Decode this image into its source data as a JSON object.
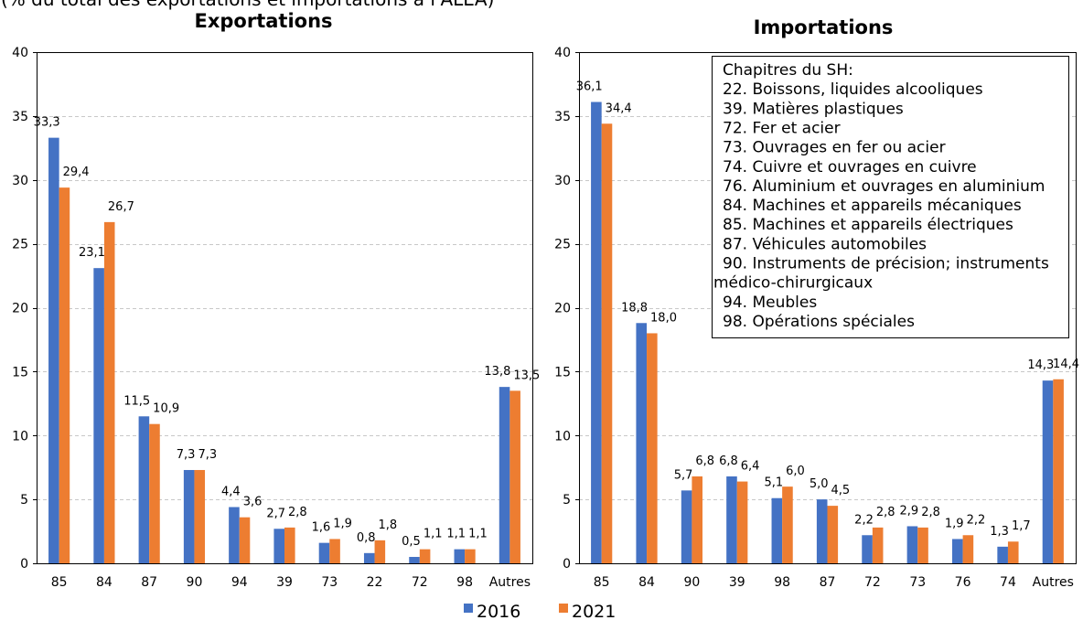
{
  "subtitle": "(% du total des exportations et importations à l'ALEA)",
  "legend": {
    "position": "bottom",
    "items": [
      {
        "label": "2016",
        "color": "#4472C4"
      },
      {
        "label": "2021",
        "color": "#ED7D31"
      }
    ]
  },
  "hs_chapters": {
    "placement": "top-right of Importations chart",
    "title": "Chapitres du SH:",
    "lines": [
      "22. Boissons, liquides alcooliques",
      "39. Matières plastiques",
      "72. Fer et acier",
      "73. Ouvrages en fer ou acier",
      "74. Cuivre et ouvrages en cuivre",
      "76. Aluminium et ouvrages en aluminium",
      "84. Machines et appareils mécaniques",
      "85. Machines et appareils électriques",
      "87. Véhicules automobiles",
      "90. Instruments de précision; instruments",
      "médico-chirurgicaux",
      "94. Meubles",
      "98. Opérations spéciales"
    ]
  },
  "chart_data": [
    {
      "type": "bar",
      "title": "Exportations",
      "categories": [
        "85",
        "84",
        "87",
        "90",
        "94",
        "39",
        "73",
        "22",
        "72",
        "98",
        "Autres"
      ],
      "series": [
        {
          "name": "2016",
          "color": "#4472C4",
          "values": [
            33.3,
            23.1,
            11.5,
            7.3,
            4.4,
            2.7,
            1.6,
            0.8,
            0.5,
            1.1,
            13.8
          ],
          "labels": [
            "33,3",
            "23,1",
            "11,5",
            "7,3",
            "4,4",
            "2,7",
            "1,6",
            "0,8",
            "0,5",
            "1,1",
            "13,8"
          ]
        },
        {
          "name": "2021",
          "color": "#ED7D31",
          "values": [
            29.4,
            26.7,
            10.9,
            7.3,
            3.6,
            2.8,
            1.9,
            1.8,
            1.1,
            1.1,
            13.5
          ],
          "labels": [
            "29,4",
            "26,7",
            "10,9",
            "7,3",
            "3,6",
            "2,8",
            "1,9",
            "1,8",
            "1,1",
            "1,1",
            "13,5"
          ]
        }
      ],
      "ylim": [
        0,
        40
      ],
      "yticks": [
        0,
        5,
        10,
        15,
        20,
        25,
        30,
        35,
        40
      ],
      "grid": true
    },
    {
      "type": "bar",
      "title": "Importations",
      "categories": [
        "85",
        "84",
        "90",
        "39",
        "98",
        "87",
        "72",
        "73",
        "76",
        "74",
        "Autres"
      ],
      "series": [
        {
          "name": "2016",
          "color": "#4472C4",
          "values": [
            36.1,
            18.8,
            5.7,
            6.8,
            5.1,
            5.0,
            2.2,
            2.9,
            1.9,
            1.3,
            14.3
          ],
          "labels": [
            "36,1",
            "18,8",
            "5,7",
            "6,8",
            "5,1",
            "5,0",
            "2,2",
            "2,9",
            "1,9",
            "1,3",
            "14,3"
          ]
        },
        {
          "name": "2021",
          "color": "#ED7D31",
          "values": [
            34.4,
            18.0,
            6.8,
            6.4,
            6.0,
            4.5,
            2.8,
            2.8,
            2.2,
            1.7,
            14.4
          ],
          "labels": [
            "34,4",
            "18,0",
            "6,8",
            "6,4",
            "6,0",
            "4,5",
            "2,8",
            "2,8",
            "2,2",
            "1,7",
            "14,4"
          ]
        }
      ],
      "ylim": [
        0,
        40
      ],
      "yticks": [
        0,
        5,
        10,
        15,
        20,
        25,
        30,
        35,
        40
      ],
      "grid": true
    }
  ]
}
